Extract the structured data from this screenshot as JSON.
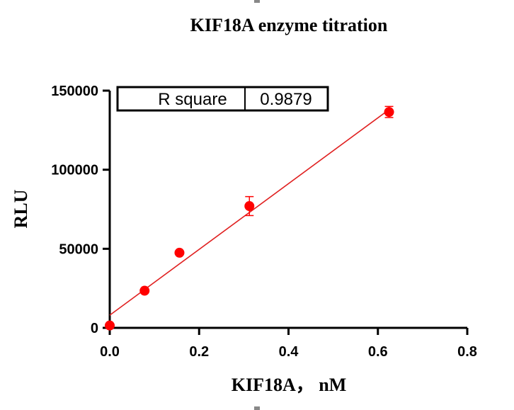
{
  "chart_data": {
    "type": "scatter",
    "title": "KIF18A  enzyme titration",
    "xlabel": "KIF18A，  nM",
    "ylabel": "RLU",
    "xlim": [
      0,
      0.8
    ],
    "ylim": [
      0,
      150000
    ],
    "x_ticks": [
      "0.0",
      "0.2",
      "0.4",
      "0.6",
      "0.8"
    ],
    "y_ticks": [
      "0",
      "50000",
      "100000",
      "150000"
    ],
    "points": [
      {
        "x": 0.0,
        "y": 1500,
        "err": 0
      },
      {
        "x": 0.078,
        "y": 23500,
        "err": 0
      },
      {
        "x": 0.156,
        "y": 47500,
        "err": 0
      },
      {
        "x": 0.3125,
        "y": 77000,
        "err": 6000
      },
      {
        "x": 0.625,
        "y": 136500,
        "err": 3500
      }
    ],
    "fit_line": {
      "x": [
        0.0,
        0.625
      ],
      "y": [
        8000,
        138000
      ]
    },
    "r_square": {
      "label": "R square",
      "value": "0.9879"
    },
    "colors": {
      "marker": "#ff0000",
      "line": "#e02020",
      "axis": "#000000"
    },
    "grid": false
  }
}
